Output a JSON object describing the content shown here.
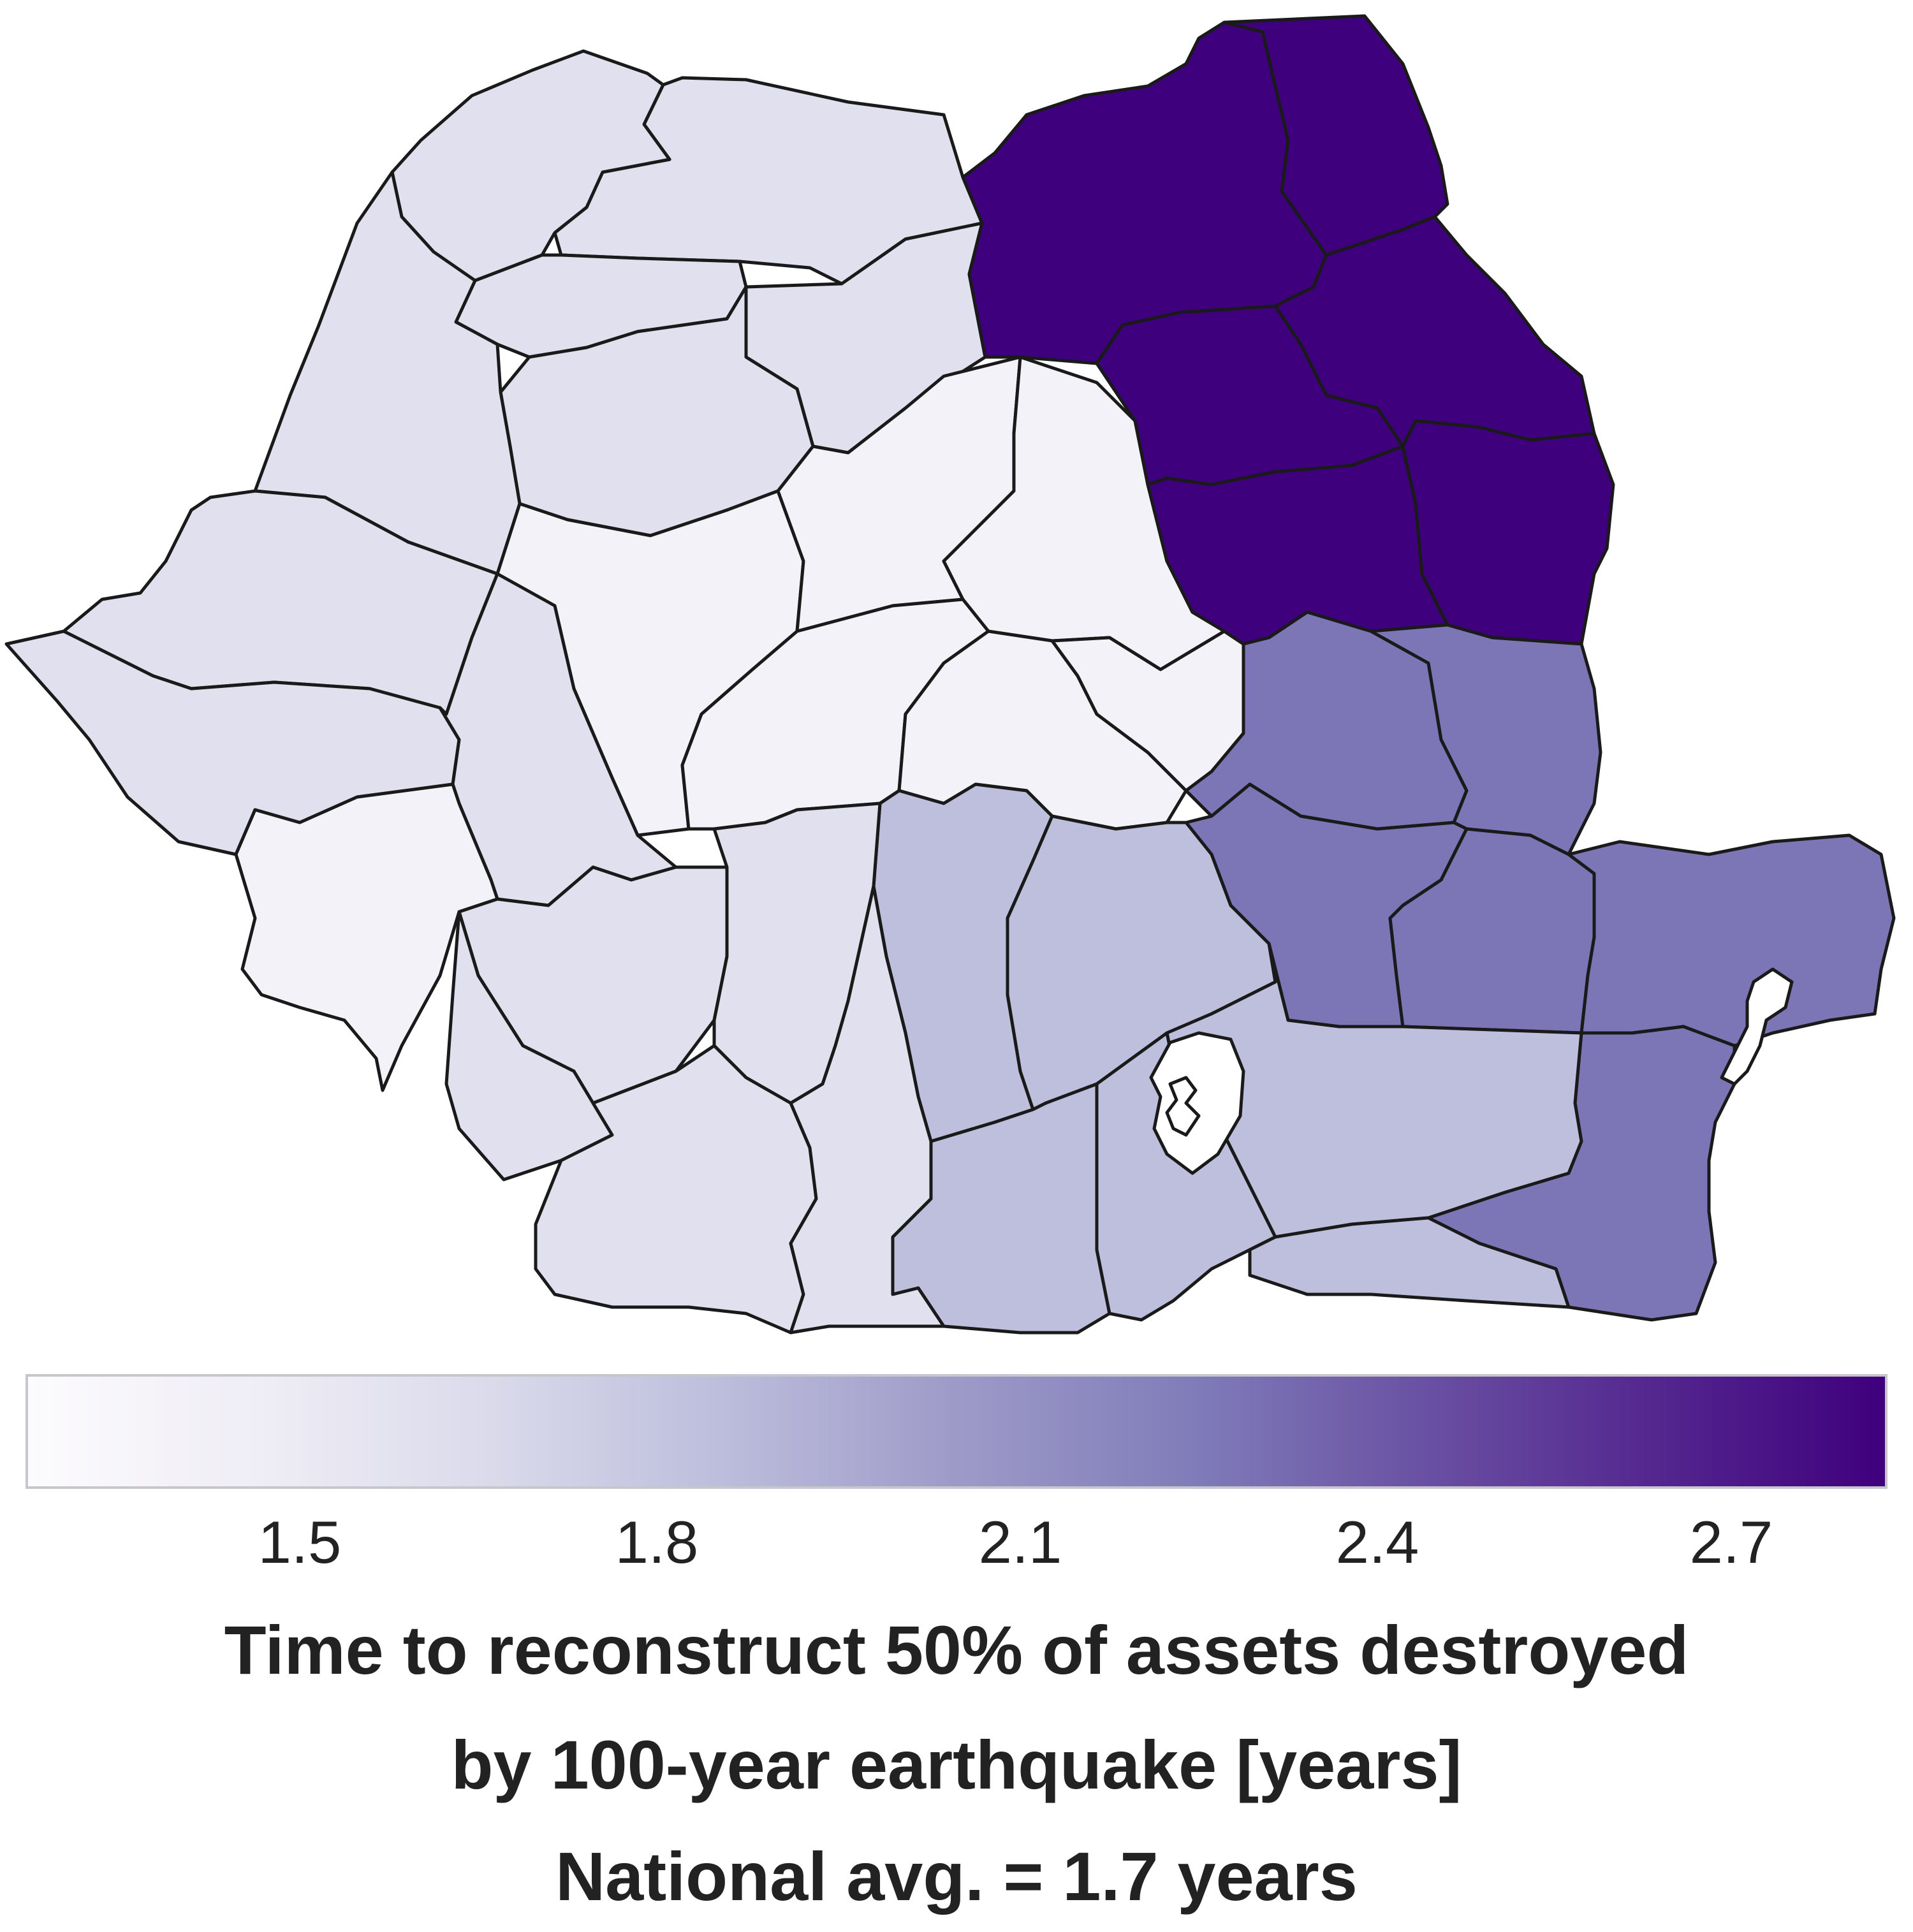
{
  "map": {
    "colors": {
      "lightest": "#f3f2f8",
      "light": "#e0e0ee",
      "medium_light": "#bebfdd",
      "medium": "#7c75b6",
      "dark": "#3f007d",
      "border": "#1a1a1a",
      "no_data": "#ffffff"
    }
  },
  "colorbar": {
    "gradient": [
      "#fcfbfd",
      "#efedf5",
      "#dadaeb",
      "#bcbddc",
      "#9e9ac8",
      "#807dba",
      "#6a51a3",
      "#54278f",
      "#3f007d"
    ],
    "ticks": [
      "1.5",
      "1.8",
      "2.1",
      "2.4",
      "2.7"
    ]
  },
  "caption": {
    "line1": "Time to reconstruct 50% of assets destroyed",
    "line2": "by 100-year earthquake [years]",
    "line3": "National avg. = 1.7 years"
  }
}
